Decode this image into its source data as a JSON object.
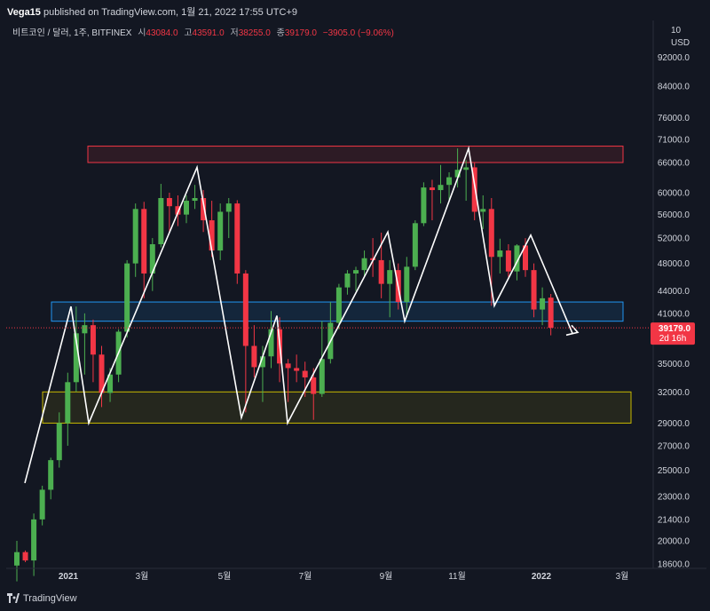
{
  "header": {
    "publisher_user": "Vega15",
    "publisher_text": " published on TradingView.com, 1월 21, 2022 17:55 UTC+9"
  },
  "symbol_bar": {
    "symbol": "비트코인 / 달러, 1주, BITFINEX",
    "open_label": "시",
    "open_value": "43084.0",
    "high_label": "고",
    "high_value": "43591.0",
    "low_label": "저",
    "low_value": "38255.0",
    "close_label": "종",
    "close_value": "39179.0",
    "change": "−3905.0 (−9.06%)"
  },
  "price_axis": {
    "currency": "USD",
    "currency_prefix": "10",
    "ticks": [
      "92000.0",
      "84000.0",
      "76000.0",
      "71000.0",
      "66000.0",
      "60000.0",
      "56000.0",
      "52000.0",
      "48000.0",
      "44000.0",
      "41000.0",
      "35000.0",
      "32000.0",
      "29000.0",
      "27000.0",
      "25000.0",
      "23000.0",
      "21400.0",
      "20000.0",
      "18600.0"
    ],
    "last_price_label": "39179.0",
    "countdown_label": "2d 16h"
  },
  "time_axis": {
    "ticks": [
      "2021",
      "3월",
      "5월",
      "7월",
      "9월",
      "11월",
      "2022",
      "3월"
    ]
  },
  "footer": {
    "brand": "TradingView"
  },
  "colors": {
    "up": "#26a69a",
    "up_bright": "#4caf50",
    "down": "#f23645",
    "background": "#131722",
    "resistance_zone": "#f23645",
    "support_zone_mid": "#2196f3",
    "support_zone_low": "#c8b900",
    "trend_line": "#ffffff"
  },
  "chart_data": {
    "type": "candlestick",
    "scale": "log",
    "ylim": [
      18000,
      100000
    ],
    "interval": "1 week",
    "x_range": [
      "2020-12",
      "2022-03"
    ],
    "candles": [
      {
        "o": 18500,
        "h": 20000,
        "l": 17600,
        "c": 19300
      },
      {
        "o": 19300,
        "h": 19400,
        "l": 18700,
        "c": 18800
      },
      {
        "o": 18800,
        "h": 21800,
        "l": 17900,
        "c": 21400
      },
      {
        "o": 21400,
        "h": 23800,
        "l": 21000,
        "c": 23500
      },
      {
        "o": 23500,
        "h": 26000,
        "l": 22800,
        "c": 25800
      },
      {
        "o": 25800,
        "h": 30000,
        "l": 25200,
        "c": 29000
      },
      {
        "o": 29000,
        "h": 34000,
        "l": 27000,
        "c": 33000
      },
      {
        "o": 33000,
        "h": 41900,
        "l": 32000,
        "c": 38500
      },
      {
        "o": 38500,
        "h": 41000,
        "l": 33800,
        "c": 39500
      },
      {
        "o": 39500,
        "h": 40200,
        "l": 33000,
        "c": 36000
      },
      {
        "o": 36000,
        "h": 37000,
        "l": 30500,
        "c": 31900
      },
      {
        "o": 31900,
        "h": 34500,
        "l": 31000,
        "c": 33800
      },
      {
        "o": 33800,
        "h": 39000,
        "l": 33000,
        "c": 38700
      },
      {
        "o": 38700,
        "h": 48500,
        "l": 38000,
        "c": 48000
      },
      {
        "o": 48000,
        "h": 58000,
        "l": 46000,
        "c": 57000
      },
      {
        "o": 57000,
        "h": 58300,
        "l": 43000,
        "c": 46500
      },
      {
        "o": 46500,
        "h": 52000,
        "l": 44000,
        "c": 51000
      },
      {
        "o": 51000,
        "h": 61700,
        "l": 50500,
        "c": 59000
      },
      {
        "o": 59000,
        "h": 60000,
        "l": 53000,
        "c": 57500
      },
      {
        "o": 57500,
        "h": 59500,
        "l": 54000,
        "c": 56000
      },
      {
        "o": 56000,
        "h": 59500,
        "l": 54500,
        "c": 58500
      },
      {
        "o": 58500,
        "h": 61500,
        "l": 57000,
        "c": 59000
      },
      {
        "o": 59000,
        "h": 60500,
        "l": 53000,
        "c": 55000
      },
      {
        "o": 55000,
        "h": 58500,
        "l": 49000,
        "c": 50000
      },
      {
        "o": 50000,
        "h": 58000,
        "l": 48500,
        "c": 56500
      },
      {
        "o": 56500,
        "h": 59000,
        "l": 52000,
        "c": 58000
      },
      {
        "o": 58000,
        "h": 58600,
        "l": 45000,
        "c": 46500
      },
      {
        "o": 46500,
        "h": 47000,
        "l": 30000,
        "c": 37000
      },
      {
        "o": 37000,
        "h": 39500,
        "l": 33500,
        "c": 34600
      },
      {
        "o": 34600,
        "h": 37000,
        "l": 31000,
        "c": 35800
      },
      {
        "o": 35800,
        "h": 41300,
        "l": 34500,
        "c": 39000
      },
      {
        "o": 39000,
        "h": 40500,
        "l": 33000,
        "c": 35000
      },
      {
        "o": 35000,
        "h": 35500,
        "l": 31000,
        "c": 34500
      },
      {
        "o": 34500,
        "h": 36000,
        "l": 33000,
        "c": 34200
      },
      {
        "o": 34200,
        "h": 35200,
        "l": 31500,
        "c": 33500
      },
      {
        "o": 33500,
        "h": 34500,
        "l": 29300,
        "c": 31800
      },
      {
        "o": 31800,
        "h": 40000,
        "l": 31500,
        "c": 35500
      },
      {
        "o": 35500,
        "h": 42500,
        "l": 35000,
        "c": 39800
      },
      {
        "o": 39800,
        "h": 45000,
        "l": 39000,
        "c": 44500
      },
      {
        "o": 44500,
        "h": 47000,
        "l": 43500,
        "c": 46500
      },
      {
        "o": 46500,
        "h": 47500,
        "l": 44000,
        "c": 47000
      },
      {
        "o": 47000,
        "h": 50000,
        "l": 46000,
        "c": 48800
      },
      {
        "o": 48800,
        "h": 52000,
        "l": 46000,
        "c": 48500
      },
      {
        "o": 48500,
        "h": 52900,
        "l": 43000,
        "c": 45000
      },
      {
        "o": 45000,
        "h": 48500,
        "l": 40500,
        "c": 47000
      },
      {
        "o": 47000,
        "h": 48000,
        "l": 41500,
        "c": 42500
      },
      {
        "o": 42500,
        "h": 49000,
        "l": 40500,
        "c": 47500
      },
      {
        "o": 47500,
        "h": 55000,
        "l": 47000,
        "c": 54500
      },
      {
        "o": 54500,
        "h": 62000,
        "l": 54000,
        "c": 61000
      },
      {
        "o": 61000,
        "h": 62500,
        "l": 55000,
        "c": 60500
      },
      {
        "o": 60500,
        "h": 65500,
        "l": 58000,
        "c": 61500
      },
      {
        "o": 61500,
        "h": 64000,
        "l": 58500,
        "c": 63000
      },
      {
        "o": 63000,
        "h": 69000,
        "l": 61000,
        "c": 64500
      },
      {
        "o": 64500,
        "h": 66500,
        "l": 58500,
        "c": 65000
      },
      {
        "o": 65000,
        "h": 66000,
        "l": 55000,
        "c": 56500
      },
      {
        "o": 56500,
        "h": 59500,
        "l": 53500,
        "c": 57000
      },
      {
        "o": 57000,
        "h": 59000,
        "l": 42000,
        "c": 49000
      },
      {
        "o": 49000,
        "h": 51900,
        "l": 46500,
        "c": 50000
      },
      {
        "o": 50000,
        "h": 51000,
        "l": 46000,
        "c": 46800
      },
      {
        "o": 46800,
        "h": 51000,
        "l": 45500,
        "c": 50800
      },
      {
        "o": 50800,
        "h": 52000,
        "l": 46000,
        "c": 47000
      },
      {
        "o": 47000,
        "h": 48000,
        "l": 40500,
        "c": 41500
      },
      {
        "o": 41500,
        "h": 44500,
        "l": 39500,
        "c": 43000
      },
      {
        "o": 43084,
        "h": 43591,
        "l": 38255,
        "c": 39179
      }
    ],
    "zones": [
      {
        "name": "resistance",
        "low": 66000,
        "high": 69500
      },
      {
        "name": "support",
        "low": 40000,
        "high": 42500
      },
      {
        "name": "support",
        "low": 29000,
        "high": 32000
      }
    ],
    "annotation_path_prices": [
      24000,
      41900,
      29000,
      65000,
      29500,
      40700,
      29000,
      53000,
      40000,
      69000,
      42000,
      52500,
      38500
    ]
  }
}
